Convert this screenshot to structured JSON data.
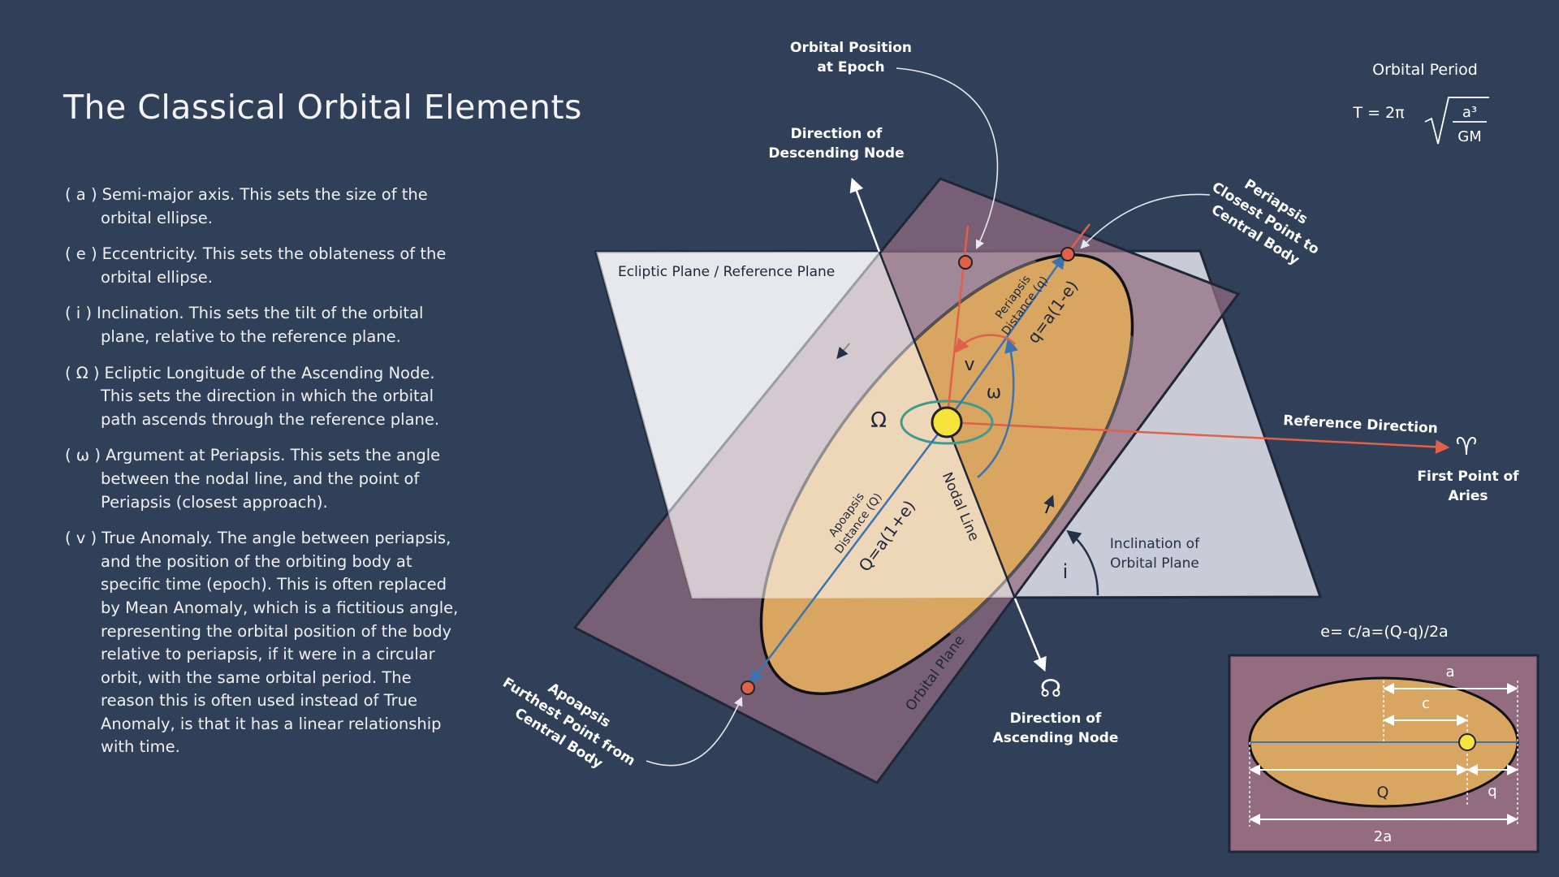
{
  "page": {
    "title": "The Classical Orbital Elements"
  },
  "elements": [
    {
      "symbol": "( a )",
      "text": "Semi-major axis. This sets the size of the orbital ellipse."
    },
    {
      "symbol": "( e )",
      "text": "Eccentricity. This sets the oblateness of the orbital ellipse."
    },
    {
      "symbol": "( i )",
      "text": "Inclination. This sets the tilt of the orbital plane, relative to the reference plane."
    },
    {
      "symbol": "( Ω )",
      "text": "Ecliptic Longitude of the Ascending Node. This sets the direction in which the orbital path ascends through the reference plane."
    },
    {
      "symbol": "( ω )",
      "text": "Argument at Periapsis. This sets the angle between the nodal line, and the point of Periapsis (closest approach)."
    },
    {
      "symbol": "( v )",
      "text": "True Anomaly. The angle between periapsis, and the position of the orbiting body at specific time (epoch). This is often replaced by Mean Anomaly, which is a fictitious angle, representing the orbital position of the body relative to periapsis, if it were in a circular orbit, with the same orbital period. The reason this is often used instead of True Anomaly, is that it has a linear relationship with time."
    }
  ],
  "diagram": {
    "orbital_position": [
      "Orbital Position",
      "at Epoch"
    ],
    "descending_node": [
      "Direction of",
      "Descending Node"
    ],
    "ecliptic_plane": "Ecliptic Plane / Reference Plane",
    "periapsis_note": [
      "Periapsis",
      "Closest Point to",
      "Central Body"
    ],
    "periapsis_distance": [
      "Periapsis",
      "Distance (q)"
    ],
    "q_formula": "q=a(1-e)",
    "nu": "v",
    "omega_small": "ω",
    "omega_big": "Ω",
    "apoapsis_distance": [
      "Apoapsis",
      "Distance (Q)"
    ],
    "Q_formula": "Q=a(1+e)",
    "nodal_line": "Nodal Line",
    "reference_direction": "Reference Direction",
    "aries_symbol": "♈",
    "aries_label": [
      "First Point of",
      "Aries"
    ],
    "inclination_label": [
      "Inclination of",
      "Orbital Plane"
    ],
    "inclination_symbol": "i",
    "orbital_plane": "Orbital Plane",
    "ascending_symbol": "☊",
    "ascending_node": [
      "Direction of",
      "Ascending Node"
    ],
    "apoapsis_note": [
      "Apoapsis",
      "Furthest Point from",
      "Central Body"
    ]
  },
  "period": {
    "title": "Orbital Period",
    "lhs": "T = 2π",
    "numerator": "a³",
    "denominator": "GM"
  },
  "eccentricity": {
    "formula": "e= c/a=(Q-q)/2a",
    "a": "a",
    "c": "c",
    "Q": "Q",
    "q": "q",
    "two_a": "2a"
  },
  "colors": {
    "background": "#314059",
    "ecliptic_plane": "#c9ccd6",
    "orbital_plane": "#936c7f",
    "orbit_fill": "#d9a662",
    "sun": "#f6e23c",
    "red": "#e0604a",
    "blue": "#3b73b0",
    "teal": "#3f9a8c"
  }
}
